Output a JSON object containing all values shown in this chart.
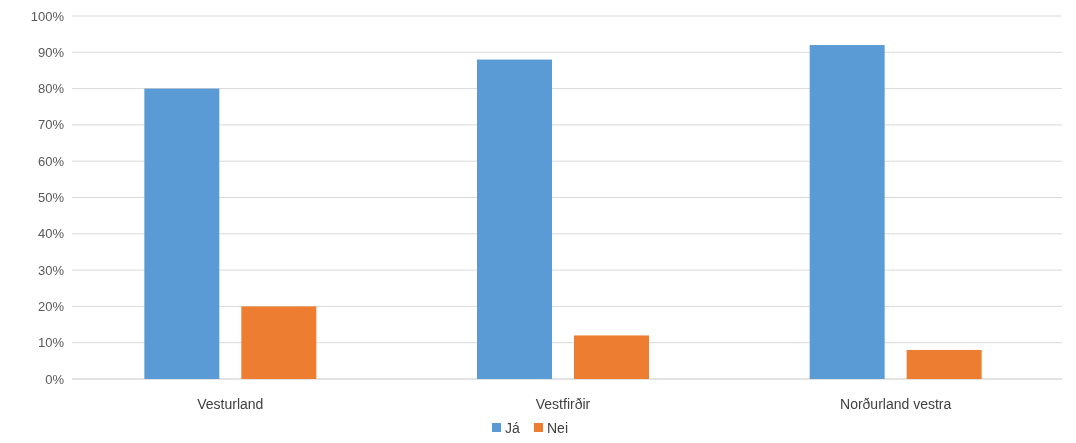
{
  "chart_data": {
    "type": "bar",
    "categories": [
      "Vesturland",
      "Vestfirðir",
      "Norðurland vestra"
    ],
    "series": [
      {
        "name": "Já",
        "color": "#5b9bd5",
        "values": [
          80,
          88,
          92
        ]
      },
      {
        "name": "Nei",
        "color": "#ed7d31",
        "values": [
          20,
          12,
          8
        ]
      }
    ],
    "ylim": [
      0,
      100
    ],
    "yticks": [
      {
        "value": 0,
        "label": "0%"
      },
      {
        "value": 10,
        "label": "10%"
      },
      {
        "value": 20,
        "label": "20%"
      },
      {
        "value": 30,
        "label": "30%"
      },
      {
        "value": 40,
        "label": "40%"
      },
      {
        "value": 50,
        "label": "50%"
      },
      {
        "value": 60,
        "label": "60%"
      },
      {
        "value": 70,
        "label": "70%"
      },
      {
        "value": 80,
        "label": "80%"
      },
      {
        "value": 90,
        "label": "90%"
      },
      {
        "value": 100,
        "label": "100%"
      }
    ],
    "grid": "y",
    "legend": "bottom"
  }
}
